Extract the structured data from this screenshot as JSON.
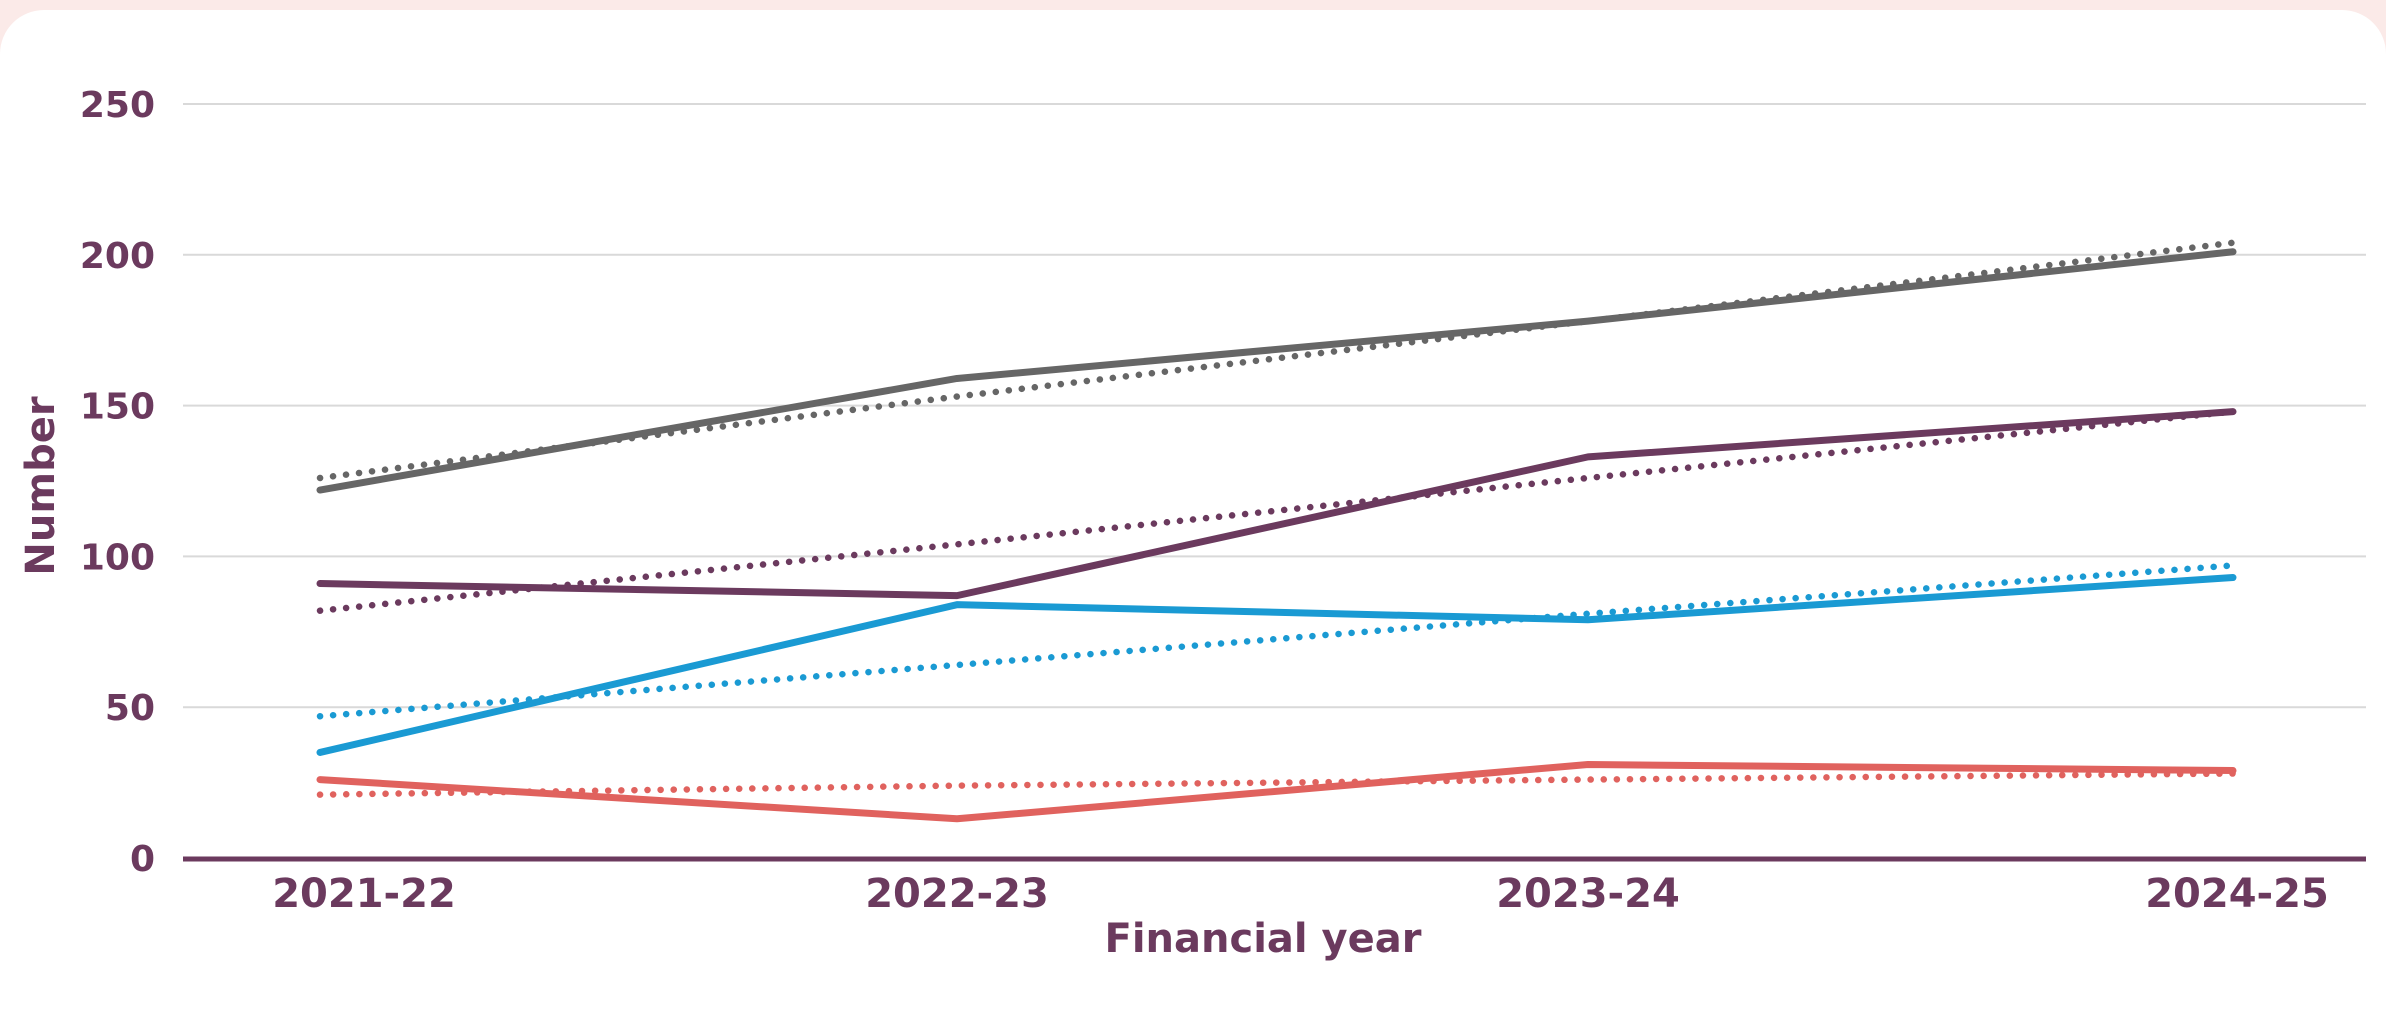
{
  "chart_data": {
    "type": "line",
    "xlabel": "Financial year",
    "ylabel": "Number",
    "categories": [
      "2021-22",
      "2022-23",
      "2023-24",
      "2024-25"
    ],
    "ylim": [
      0,
      250
    ],
    "yticks": [
      0,
      50,
      100,
      150,
      200,
      250
    ],
    "grid": true,
    "legend": "none",
    "series": [
      {
        "color": "#666666",
        "style": "solid",
        "values": [
          122,
          159,
          178,
          201
        ]
      },
      {
        "color": "#666666",
        "style": "dotted",
        "values": [
          126,
          153,
          178,
          204
        ]
      },
      {
        "color": "#6b3a5e",
        "style": "solid",
        "values": [
          91,
          87,
          133,
          148
        ]
      },
      {
        "color": "#6b3a5e",
        "style": "dotted",
        "values": [
          82,
          104,
          126,
          148
        ]
      },
      {
        "color": "#1a9ad3",
        "style": "solid",
        "values": [
          35,
          84,
          79,
          93
        ]
      },
      {
        "color": "#1a9ad3",
        "style": "dotted",
        "values": [
          47,
          64,
          81,
          97
        ]
      },
      {
        "color": "#e0625e",
        "style": "solid",
        "values": [
          26,
          13,
          31,
          29
        ]
      },
      {
        "color": "#e0625e",
        "style": "dotted",
        "values": [
          21,
          24,
          26,
          28
        ]
      }
    ],
    "colors": {
      "axis": "#6b3a5e",
      "grid": "#d9d9d9"
    }
  }
}
